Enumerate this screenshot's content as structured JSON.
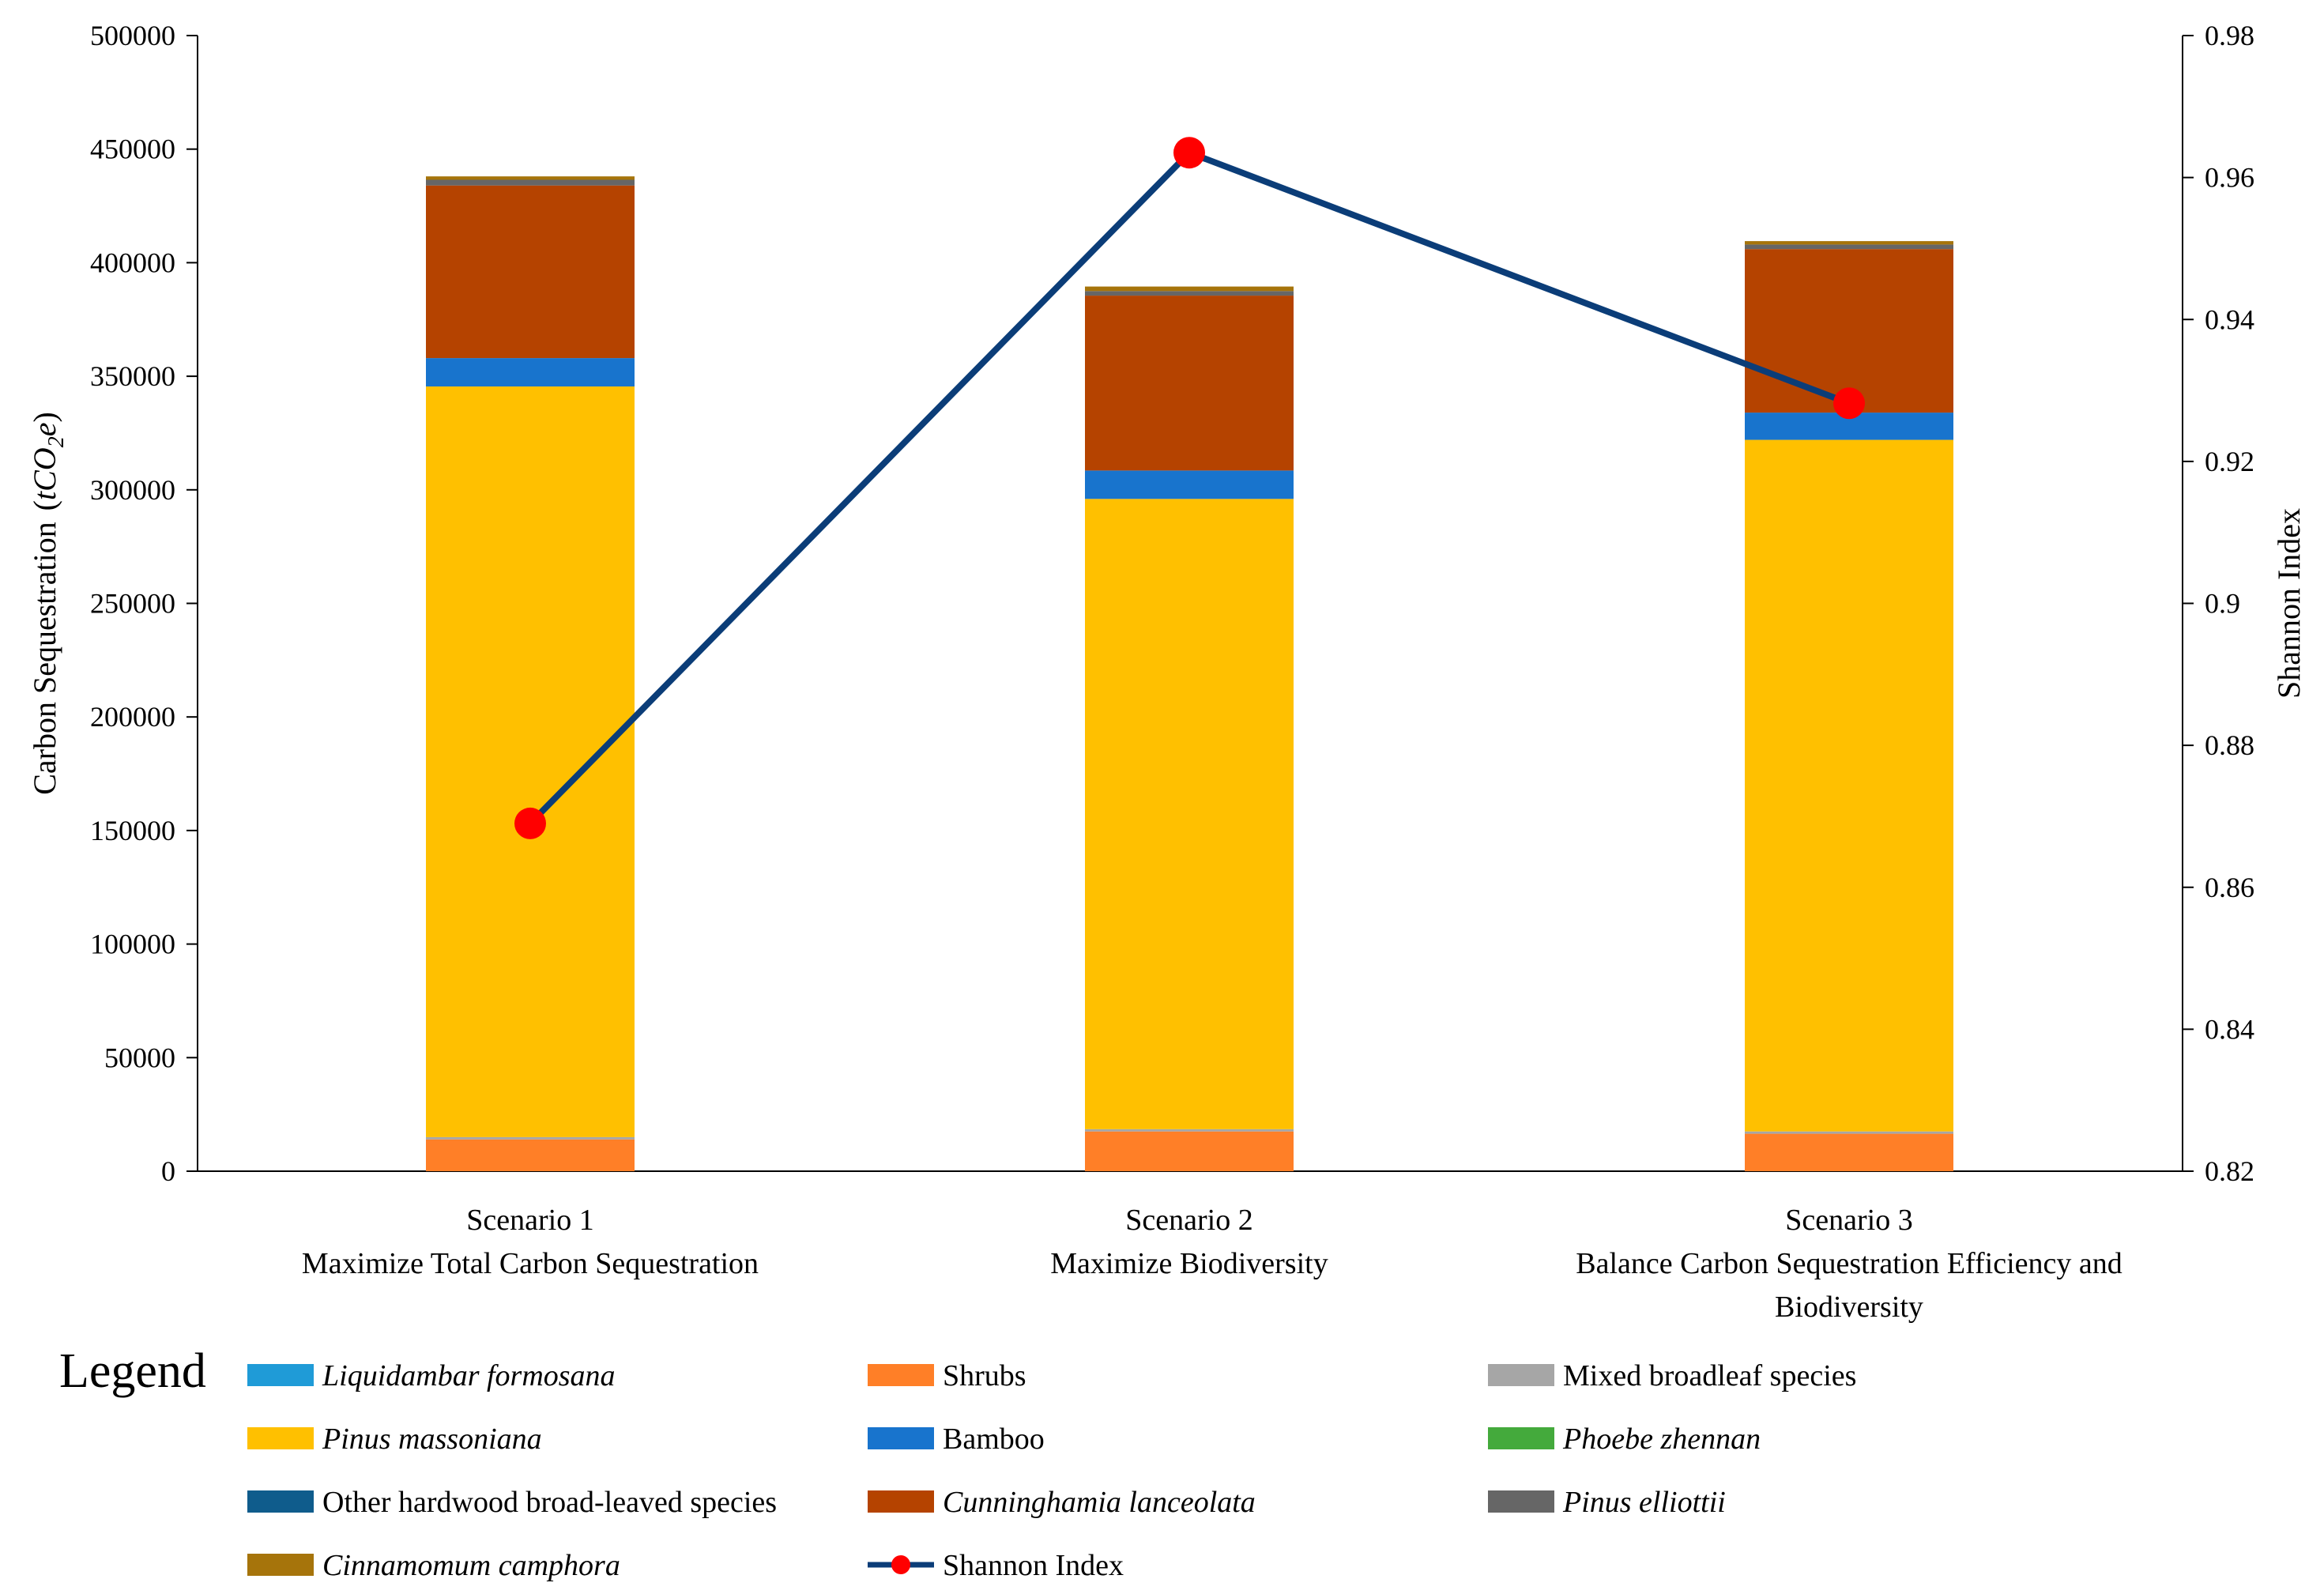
{
  "chart_data": {
    "type": "bar",
    "stacked": true,
    "ylabel": "Carbon Sequestration",
    "ylabel_unit": "tCO2e",
    "y2label": "Shannon Index",
    "ylim": [
      0,
      500000
    ],
    "y2lim": [
      0.82,
      0.98
    ],
    "yticks": [
      "0",
      "50000",
      "100000",
      "150000",
      "200000",
      "250000",
      "300000",
      "350000",
      "400000",
      "450000",
      "500000"
    ],
    "y2ticks": [
      "0.82",
      "0.84",
      "0.86",
      "0.88",
      "0.9",
      "0.92",
      "0.94",
      "0.96",
      "0.98"
    ],
    "categories": [
      {
        "line1": "Scenario 1",
        "line2": "Maximize Total Carbon Sequestration",
        "line3": ""
      },
      {
        "line1": "Scenario 2",
        "line2": "Maximize Biodiversity",
        "line3": ""
      },
      {
        "line1": "Scenario 3",
        "line2": "Balance Carbon Sequestration Efficiency and",
        "line3": "Biodiversity"
      }
    ],
    "series": [
      {
        "name": "Shrubs",
        "color": "#FF7F27",
        "italic": false,
        "values": [
          14000,
          17500,
          16500
        ]
      },
      {
        "name": "Mixed broadleaf species",
        "color": "#A6A6A6",
        "italic": false,
        "values": [
          1000,
          1000,
          1000
        ]
      },
      {
        "name": "Pinus massoniana",
        "color": "#FFC000",
        "italic": true,
        "values": [
          330500,
          277500,
          304500
        ]
      },
      {
        "name": "Bamboo",
        "color": "#1874CD",
        "italic": false,
        "values": [
          12500,
          12500,
          12000
        ]
      },
      {
        "name": "Cunninghamia lanceolata",
        "color": "#B54300",
        "italic": true,
        "values": [
          76000,
          77000,
          72000
        ]
      },
      {
        "name": "Pinus elliottii",
        "color": "#666666",
        "italic": true,
        "values": [
          2500,
          2000,
          2000
        ]
      },
      {
        "name": "Cinnamomum camphora",
        "color": "#A6740B",
        "italic": true,
        "values": [
          1500,
          2000,
          1500
        ]
      }
    ],
    "line_series": {
      "name": "Shannon Index",
      "line_color": "#0B3D78",
      "marker_color": "#FF0000",
      "values": [
        0.869,
        0.9635,
        0.9282
      ]
    },
    "legend": {
      "title": "Legend",
      "position": "bottom",
      "items": [
        {
          "label": "Liquidambar formosana",
          "color": "#1F9BD7",
          "italic": true,
          "kind": "bar"
        },
        {
          "label": "Shrubs",
          "color": "#FF7F27",
          "italic": false,
          "kind": "bar"
        },
        {
          "label": "Mixed broadleaf species",
          "color": "#A6A6A6",
          "italic": false,
          "kind": "bar"
        },
        {
          "label": "Pinus massoniana",
          "color": "#FFC000",
          "italic": true,
          "kind": "bar"
        },
        {
          "label": "Bamboo",
          "color": "#1874CD",
          "italic": false,
          "kind": "bar"
        },
        {
          "label": "Phoebe zhennan",
          "color": "#44AA3C",
          "italic": true,
          "kind": "bar"
        },
        {
          "label": "Other hardwood broad-leaved species",
          "color": "#0F5C8C",
          "italic": false,
          "kind": "bar"
        },
        {
          "label": "Cunninghamia lanceolata",
          "color": "#B54300",
          "italic": true,
          "kind": "bar"
        },
        {
          "label": "Pinus elliottii",
          "color": "#666666",
          "italic": true,
          "kind": "bar"
        },
        {
          "label": "Cinnamomum camphora",
          "color": "#A6740B",
          "italic": true,
          "kind": "bar"
        },
        {
          "label": "Shannon Index",
          "color": "#0B3D78",
          "marker_color": "#FF0000",
          "italic": false,
          "kind": "line"
        }
      ]
    }
  }
}
